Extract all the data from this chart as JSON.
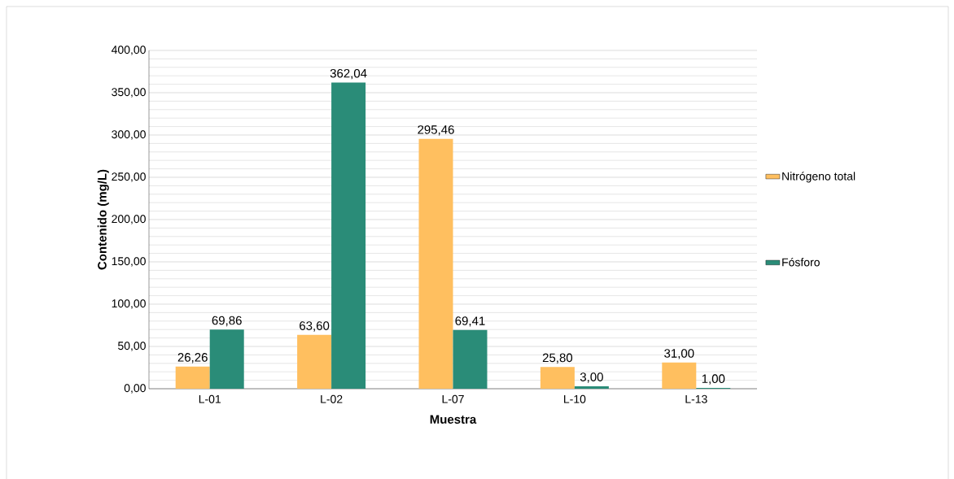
{
  "chart_data": {
    "type": "bar",
    "xlabel": "Muestra",
    "ylabel": "Contenido (mg/L)",
    "categories": [
      "L-01",
      "L-02",
      "L-07",
      "L-10",
      "L-13"
    ],
    "series": [
      {
        "name": "Nitrógeno total",
        "color": "#ffbf5f",
        "values": [
          26.26,
          63.6,
          295.46,
          25.8,
          31.0
        ],
        "value_labels": [
          "26,26",
          "63,60",
          "295,46",
          "25,80",
          "31,00"
        ]
      },
      {
        "name": "Fósforo",
        "color": "#2a8c78",
        "values": [
          69.86,
          362.04,
          69.41,
          3.0,
          1.0
        ],
        "value_labels": [
          "69,86",
          "362,04",
          "69,41",
          "3,00",
          "1,00"
        ]
      }
    ],
    "ylim": [
      0,
      400
    ],
    "yticks": [
      {
        "value": 0,
        "label": "0,00"
      },
      {
        "value": 50,
        "label": "50,00"
      },
      {
        "value": 100,
        "label": "100,00"
      },
      {
        "value": 150,
        "label": "150,00"
      },
      {
        "value": 200,
        "label": "200,00"
      },
      {
        "value": 250,
        "label": "250,00"
      },
      {
        "value": 300,
        "label": "300,00"
      },
      {
        "value": 350,
        "label": "350,00"
      },
      {
        "value": 400,
        "label": "400,00"
      }
    ],
    "grid": "y",
    "legend": "right"
  }
}
